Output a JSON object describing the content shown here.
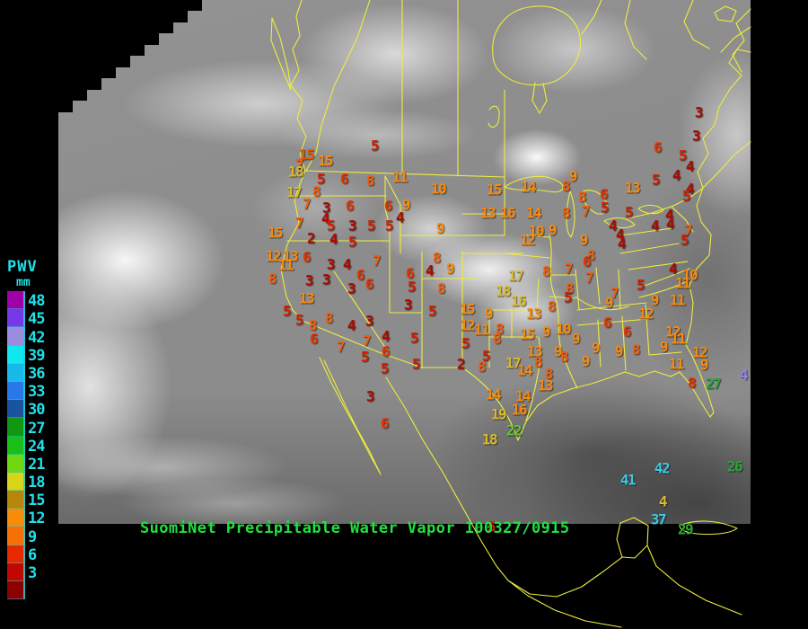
{
  "title": {
    "text": "SuomiNet Precipitable Water Vapor 100327/0915"
  },
  "colors": {
    "map_outline": "#EDED3E",
    "title_green": "#22E040",
    "legend_text": "#20E0E8",
    "background": "#000000"
  },
  "legend": {
    "title": "PWV",
    "unit": "mm",
    "extra_swatch_color": "#8C0000",
    "entries": [
      {
        "value": "48",
        "color": "#A000A8"
      },
      {
        "value": "45",
        "color": "#7838E8"
      },
      {
        "value": "42",
        "color": "#9C8CE0"
      },
      {
        "value": "39",
        "color": "#10E8F0"
      },
      {
        "value": "36",
        "color": "#18B8E8"
      },
      {
        "value": "33",
        "color": "#2878E8"
      },
      {
        "value": "30",
        "color": "#1A54A0"
      },
      {
        "value": "27",
        "color": "#109810"
      },
      {
        "value": "24",
        "color": "#18C018"
      },
      {
        "value": "21",
        "color": "#70D810"
      },
      {
        "value": "18",
        "color": "#D8D418"
      },
      {
        "value": "15",
        "color": "#B88608"
      },
      {
        "value": "12",
        "color": "#F88C08"
      },
      {
        "value": "9",
        "color": "#F87008"
      },
      {
        "value": "6",
        "color": "#E82800"
      },
      {
        "value": "3",
        "color": "#C00800"
      }
    ]
  },
  "value_color_ranges": [
    {
      "min": 1,
      "max": 4,
      "color": "#AE0A00"
    },
    {
      "min": 5,
      "max": 5,
      "color": "#D62000"
    },
    {
      "min": 6,
      "max": 6,
      "color": "#E63600"
    },
    {
      "min": 7,
      "max": 8,
      "color": "#EF5E10"
    },
    {
      "min": 9,
      "max": 16,
      "color": "#F68A10"
    },
    {
      "min": 17,
      "max": 21,
      "color": "#D9BA2E"
    },
    {
      "min": 22,
      "max": 25,
      "color": "#63C438"
    },
    {
      "min": 26,
      "max": 33,
      "color": "#28A838"
    },
    {
      "min": 34,
      "max": 48,
      "color": "#3CC8E6"
    }
  ],
  "stations": [
    [
      5,
      417,
      163
    ],
    [
      15,
      341,
      173,
      "#E55800"
    ],
    [
      15,
      362,
      180
    ],
    [
      7,
      333,
      184
    ],
    [
      18,
      329,
      192,
      "#D9BA2E"
    ],
    [
      5,
      357,
      200
    ],
    [
      6,
      383,
      200
    ],
    [
      8,
      412,
      202
    ],
    [
      11,
      445,
      198
    ],
    [
      10,
      488,
      211
    ],
    [
      15,
      550,
      212
    ],
    [
      14,
      588,
      209
    ],
    [
      17,
      327,
      215
    ],
    [
      8,
      352,
      214
    ],
    [
      9,
      638,
      197
    ],
    [
      13,
      704,
      210
    ],
    [
      3,
      778,
      126
    ],
    [
      3,
      775,
      152
    ],
    [
      6,
      732,
      165
    ],
    [
      5,
      760,
      174
    ],
    [
      4,
      768,
      186
    ],
    [
      4,
      753,
      196
    ],
    [
      5,
      730,
      201
    ],
    [
      8,
      630,
      208
    ],
    [
      8,
      648,
      220
    ],
    [
      6,
      672,
      217
    ],
    [
      5,
      673,
      232
    ],
    [
      4,
      768,
      211
    ],
    [
      5,
      764,
      219
    ],
    [
      7,
      341,
      228
    ],
    [
      3,
      363,
      232
    ],
    [
      6,
      389,
      230
    ],
    [
      6,
      432,
      230
    ],
    [
      9,
      452,
      229
    ],
    [
      4,
      362,
      244
    ],
    [
      4,
      445,
      243
    ],
    [
      7,
      333,
      249
    ],
    [
      5,
      368,
      252
    ],
    [
      3,
      392,
      252
    ],
    [
      5,
      413,
      252
    ],
    [
      5,
      433,
      252
    ],
    [
      9,
      490,
      255
    ],
    [
      15,
      306,
      260
    ],
    [
      2,
      346,
      266
    ],
    [
      4,
      371,
      267
    ],
    [
      5,
      392,
      270
    ],
    [
      13,
      543,
      238
    ],
    [
      16,
      565,
      238
    ],
    [
      14,
      594,
      238
    ],
    [
      8,
      630,
      238
    ],
    [
      7,
      652,
      236
    ],
    [
      10,
      597,
      258
    ],
    [
      9,
      615,
      257
    ],
    [
      12,
      587,
      268
    ],
    [
      9,
      650,
      268
    ],
    [
      4,
      682,
      252
    ],
    [
      4,
      690,
      262
    ],
    [
      4,
      692,
      272
    ],
    [
      5,
      700,
      237
    ],
    [
      4,
      745,
      240
    ],
    [
      4,
      746,
      250
    ],
    [
      4,
      729,
      252
    ],
    [
      7,
      766,
      257
    ],
    [
      5,
      762,
      268
    ],
    [
      12,
      304,
      286
    ],
    [
      13,
      323,
      286
    ],
    [
      11,
      318,
      296
    ],
    [
      6,
      341,
      287
    ],
    [
      8,
      303,
      311
    ],
    [
      3,
      368,
      295
    ],
    [
      4,
      386,
      295
    ],
    [
      7,
      419,
      291
    ],
    [
      8,
      486,
      288
    ],
    [
      9,
      501,
      300
    ],
    [
      3,
      344,
      313
    ],
    [
      3,
      363,
      312
    ],
    [
      6,
      401,
      307
    ],
    [
      6,
      456,
      305
    ],
    [
      4,
      478,
      302
    ],
    [
      3,
      391,
      322
    ],
    [
      6,
      411,
      317
    ],
    [
      5,
      458,
      320
    ],
    [
      8,
      491,
      322
    ],
    [
      13,
      341,
      333
    ],
    [
      3,
      454,
      340
    ],
    [
      5,
      319,
      347
    ],
    [
      5,
      481,
      347
    ],
    [
      5,
      333,
      357
    ],
    [
      8,
      366,
      355
    ],
    [
      8,
      348,
      363
    ],
    [
      4,
      391,
      363
    ],
    [
      3,
      411,
      358
    ],
    [
      6,
      349,
      378
    ],
    [
      4,
      429,
      375
    ],
    [
      5,
      461,
      377
    ],
    [
      7,
      408,
      380
    ],
    [
      7,
      379,
      387
    ],
    [
      6,
      429,
      392
    ],
    [
      5,
      406,
      398
    ],
    [
      5,
      463,
      406
    ],
    [
      5,
      428,
      411
    ],
    [
      17,
      574,
      308
    ],
    [
      8,
      608,
      303
    ],
    [
      7,
      633,
      300
    ],
    [
      8,
      658,
      285
    ],
    [
      6,
      653,
      292
    ],
    [
      7,
      656,
      310
    ],
    [
      18,
      560,
      325,
      "#D9BA2E"
    ],
    [
      16,
      577,
      336,
      "#D9BA2E"
    ],
    [
      8,
      634,
      322
    ],
    [
      5,
      632,
      332
    ],
    [
      8,
      614,
      342
    ],
    [
      15,
      520,
      345
    ],
    [
      9,
      544,
      350
    ],
    [
      13,
      594,
      350
    ],
    [
      9,
      678,
      338
    ],
    [
      12,
      520,
      363
    ],
    [
      11,
      536,
      368
    ],
    [
      8,
      556,
      367
    ],
    [
      8,
      553,
      378
    ],
    [
      15,
      587,
      373
    ],
    [
      9,
      608,
      370
    ],
    [
      10,
      627,
      367
    ],
    [
      9,
      641,
      378
    ],
    [
      5,
      518,
      383
    ],
    [
      13,
      595,
      392
    ],
    [
      9,
      621,
      392
    ],
    [
      8,
      628,
      398
    ],
    [
      9,
      663,
      388
    ],
    [
      5,
      541,
      397
    ],
    [
      2,
      513,
      406
    ],
    [
      8,
      536,
      409
    ],
    [
      17,
      571,
      405
    ],
    [
      8,
      599,
      404
    ],
    [
      9,
      652,
      403
    ],
    [
      14,
      584,
      413
    ],
    [
      4,
      749,
      300
    ],
    [
      10,
      768,
      307
    ],
    [
      11,
      760,
      316
    ],
    [
      5,
      713,
      318
    ],
    [
      7,
      684,
      327
    ],
    [
      9,
      729,
      335
    ],
    [
      11,
      754,
      335
    ],
    [
      12,
      719,
      350
    ],
    [
      6,
      676,
      360
    ],
    [
      6,
      698,
      370
    ],
    [
      12,
      749,
      370
    ],
    [
      11,
      755,
      378
    ],
    [
      12,
      779,
      393
    ],
    [
      9,
      739,
      387
    ],
    [
      9,
      689,
      392
    ],
    [
      8,
      708,
      390
    ],
    [
      11,
      753,
      406
    ],
    [
      9,
      784,
      407
    ],
    [
      8,
      770,
      427,
      "#E83000"
    ],
    [
      27,
      794,
      428
    ],
    [
      4,
      828,
      418,
      "#9184EC"
    ],
    [
      8,
      611,
      417
    ],
    [
      13,
      607,
      430
    ],
    [
      14,
      549,
      440
    ],
    [
      14,
      582,
      442
    ],
    [
      19,
      555,
      462
    ],
    [
      16,
      578,
      457
    ],
    [
      22,
      572,
      480
    ],
    [
      18,
      545,
      490
    ],
    [
      3,
      412,
      442
    ],
    [
      6,
      428,
      472
    ],
    [
      42,
      737,
      522
    ],
    [
      41,
      699,
      535
    ],
    [
      26,
      818,
      520
    ],
    [
      37,
      733,
      579
    ],
    [
      29,
      763,
      590
    ],
    [
      4,
      738,
      559,
      "#D9BA2E"
    ],
    [
      5,
      547,
      587
    ]
  ]
}
